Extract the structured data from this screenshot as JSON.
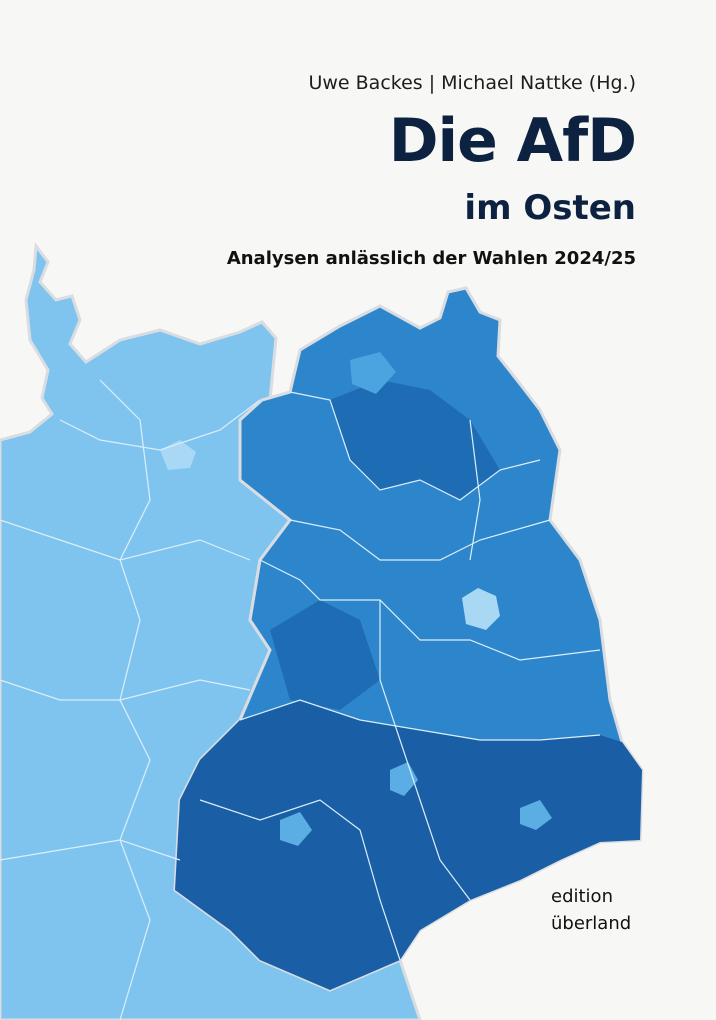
{
  "cover": {
    "authors": "Uwe Backes | Michael Nattke (Hg.)",
    "title_line1": "Die AfD",
    "title_line2": "im Osten",
    "subtitle": "Analysen anlässlich der Wahlen 2024/25",
    "publisher_line1": "edition",
    "publisher_line2": "überland"
  }
}
